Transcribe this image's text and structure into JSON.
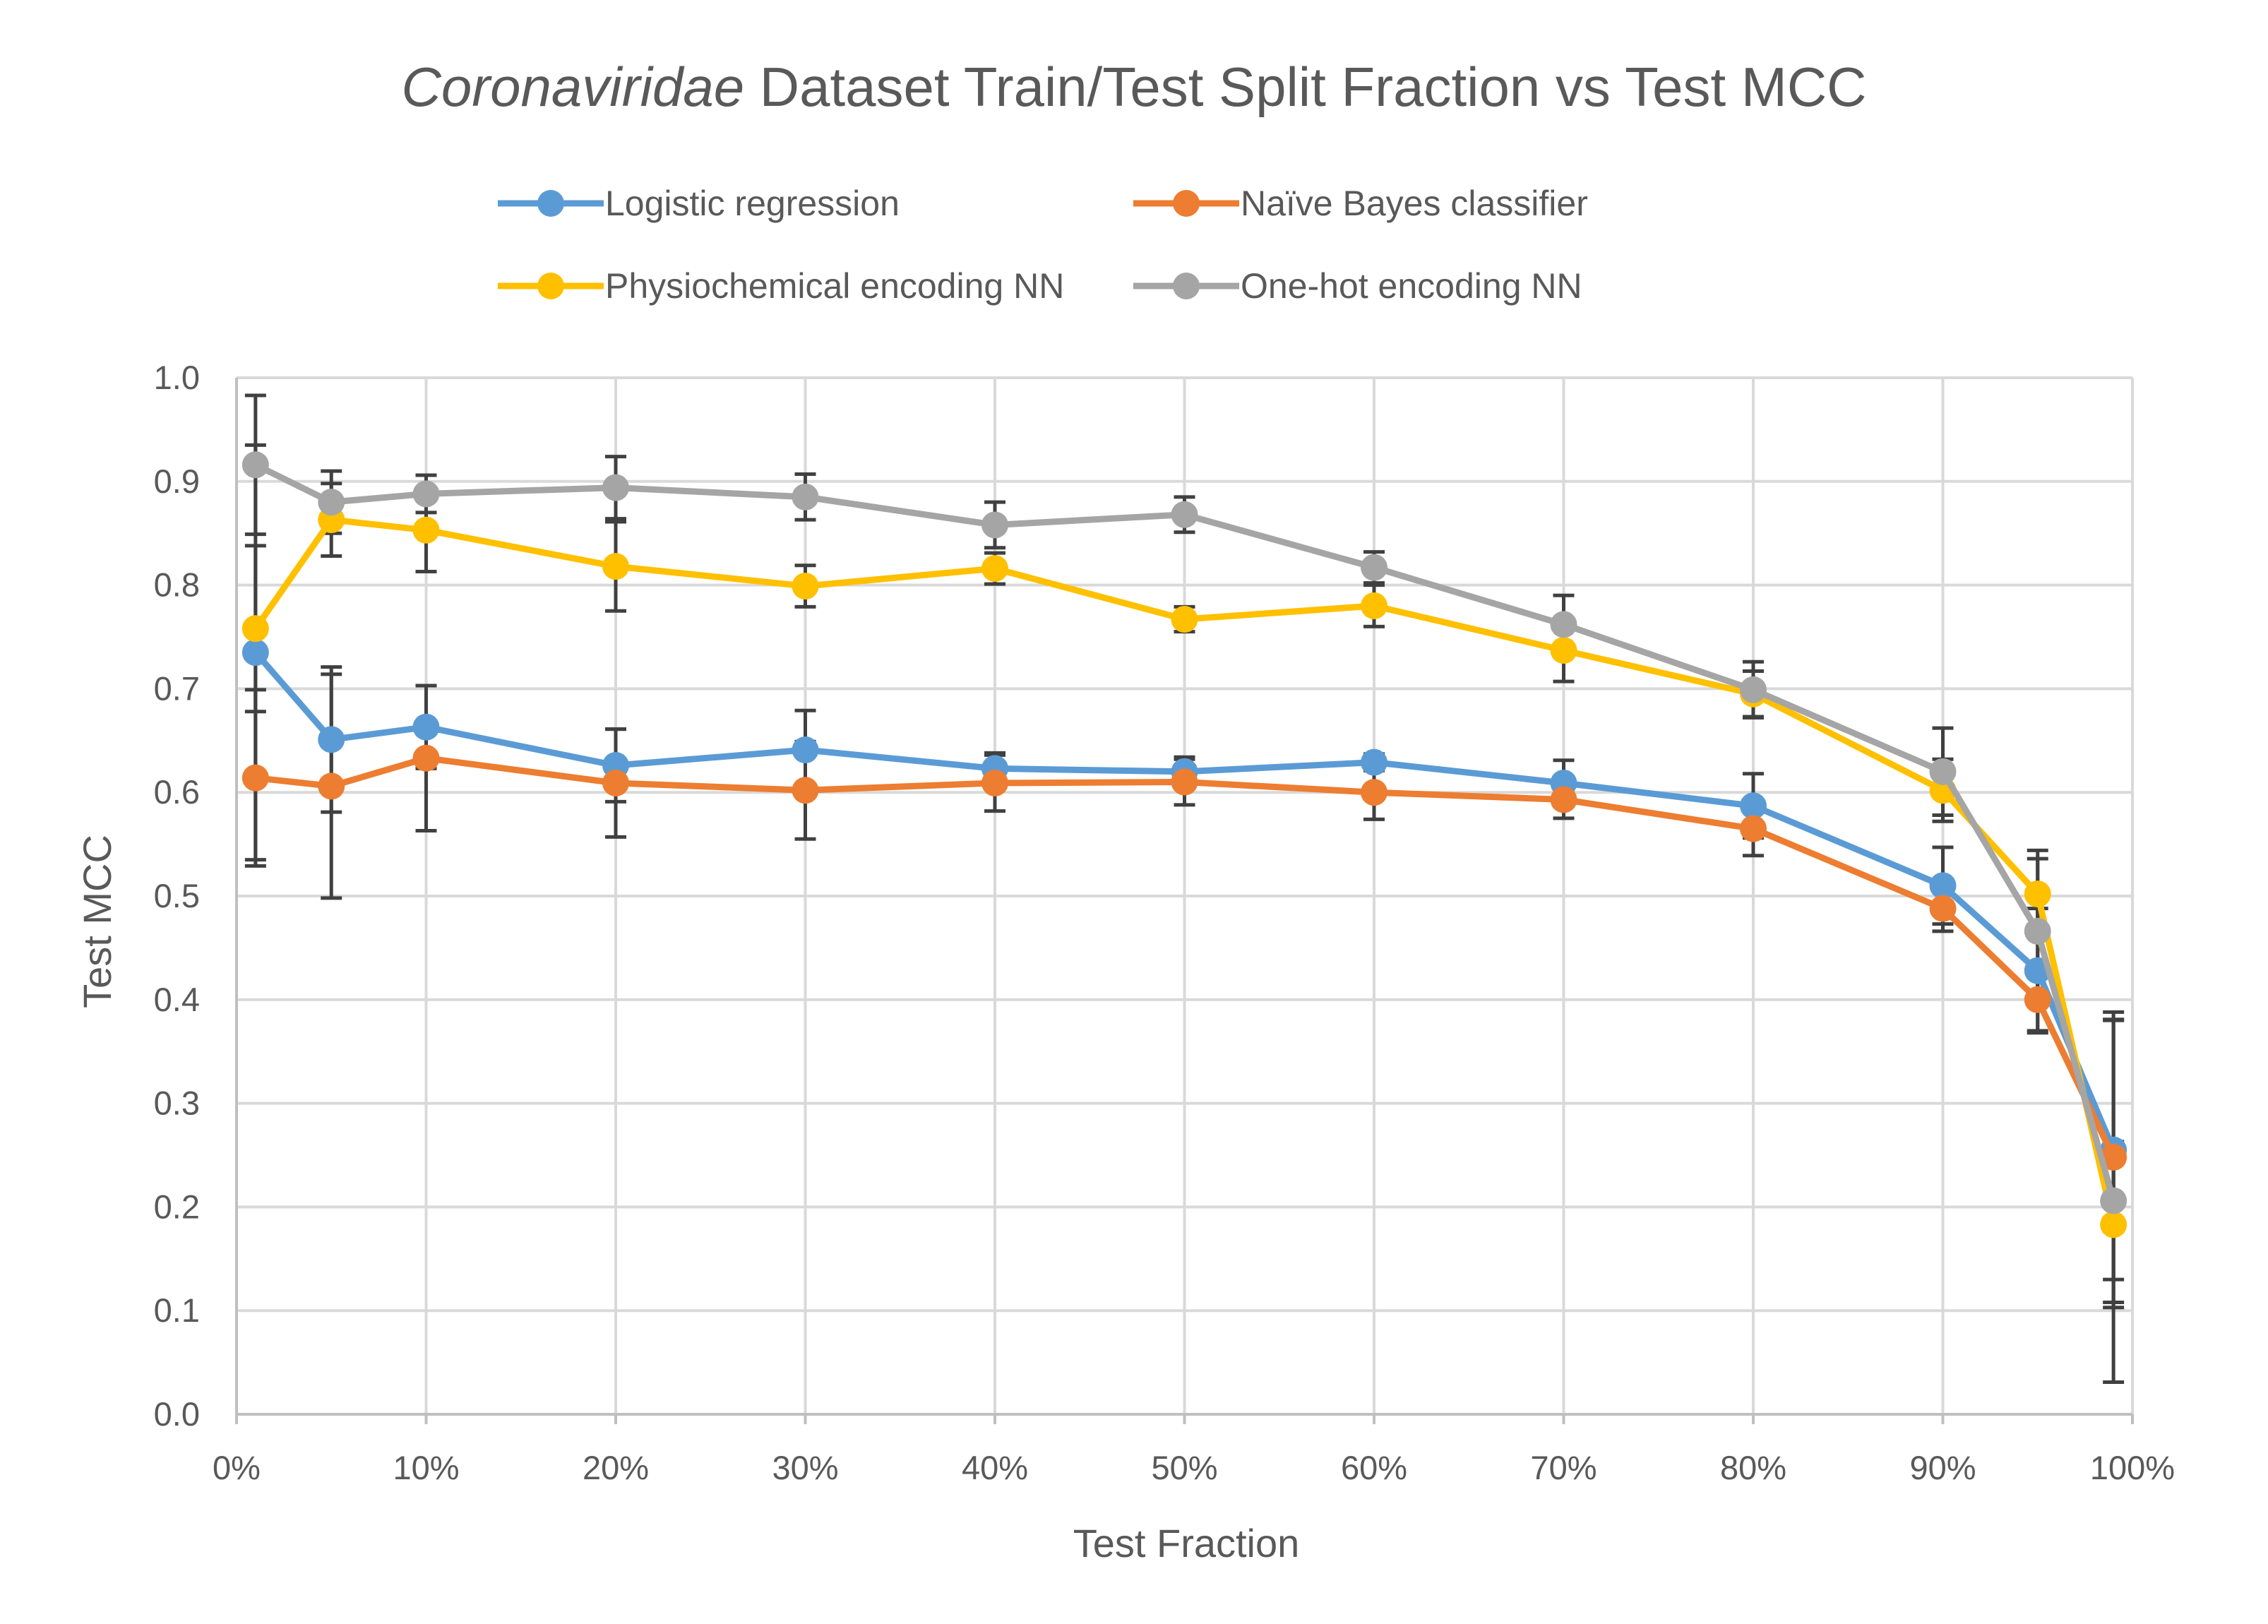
{
  "chart_data": {
    "type": "line",
    "title_italic": "Coronaviridae",
    "title_rest": " Dataset Train/Test Split Fraction vs Test MCC",
    "xlabel": "Test Fraction",
    "ylabel": "Test MCC",
    "x_ticks": [
      "0%",
      "10%",
      "20%",
      "30%",
      "40%",
      "50%",
      "60%",
      "70%",
      "80%",
      "90%",
      "100%"
    ],
    "y_ticks": [
      "0.0",
      "0.1",
      "0.2",
      "0.3",
      "0.4",
      "0.5",
      "0.6",
      "0.7",
      "0.8",
      "0.9",
      "1.0"
    ],
    "xlim": [
      0,
      100
    ],
    "ylim": [
      0,
      1.0
    ],
    "grid": true,
    "legend_position": "top",
    "x": [
      1,
      5,
      10,
      20,
      30,
      40,
      50,
      60,
      70,
      80,
      90,
      95,
      99
    ],
    "series": [
      {
        "name": "Logistic regression",
        "color": "#5B9BD5",
        "values": [
          0.735,
          0.651,
          0.663,
          0.626,
          0.641,
          0.623,
          0.62,
          0.629,
          0.609,
          0.587,
          0.51,
          0.428,
          0.255
        ],
        "errors": [
          0.2,
          0.07,
          0.04,
          0.035,
          0.038,
          0.015,
          0.014,
          0.008,
          0.022,
          0.031,
          0.037,
          0.06,
          0.125
        ]
      },
      {
        "name": "Naïve Bayes classifier",
        "color": "#ED7D31",
        "values": [
          0.614,
          0.606,
          0.633,
          0.609,
          0.602,
          0.609,
          0.61,
          0.6,
          0.593,
          0.565,
          0.488,
          0.4,
          0.248
        ],
        "errors": [
          0.085,
          0.108,
          0.07,
          0.052,
          0.047,
          0.027,
          0.022,
          0.026,
          0.018,
          0.026,
          0.022,
          0.03,
          0.14
        ]
      },
      {
        "name": "Physiochemical encoding NN",
        "color": "#FFC000",
        "values": [
          0.758,
          0.863,
          0.853,
          0.818,
          0.799,
          0.816,
          0.767,
          0.78,
          0.737,
          0.695,
          0.602,
          0.502,
          0.183
        ],
        "errors": [
          0.08,
          0.035,
          0.04,
          0.043,
          0.02,
          0.015,
          0.012,
          0.02,
          0.03,
          0.022,
          0.03,
          0.042,
          0.08
        ]
      },
      {
        "name": "One-hot encoding NN",
        "color": "#A5A5A5",
        "values": [
          0.916,
          0.88,
          0.888,
          0.894,
          0.885,
          0.858,
          0.868,
          0.817,
          0.762,
          0.699,
          0.62,
          0.466,
          0.206
        ],
        "errors": [
          0.067,
          0.03,
          0.018,
          0.03,
          0.022,
          0.022,
          0.017,
          0.015,
          0.028,
          0.027,
          0.042,
          0.07,
          0.175
        ]
      }
    ]
  }
}
